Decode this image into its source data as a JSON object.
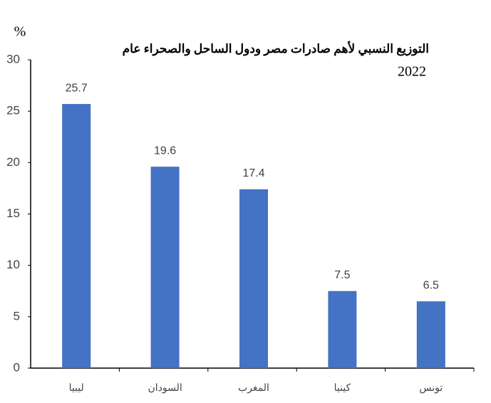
{
  "chart_data": {
    "type": "bar",
    "title": "التوزيع النسبي لأهم صادرات مصر ودول الساحل والصحراء عام",
    "subtitle": "2022",
    "y_label": "%",
    "categories": [
      "ليبيا",
      "السودان",
      "المغرب",
      "كينيا",
      "تونس"
    ],
    "values": [
      25.7,
      19.6,
      17.4,
      7.5,
      6.5
    ],
    "color": "#4472c4",
    "ylim": [
      0,
      30
    ],
    "yticks": [
      0,
      5,
      10,
      15,
      20,
      25,
      30
    ],
    "grid": false
  }
}
